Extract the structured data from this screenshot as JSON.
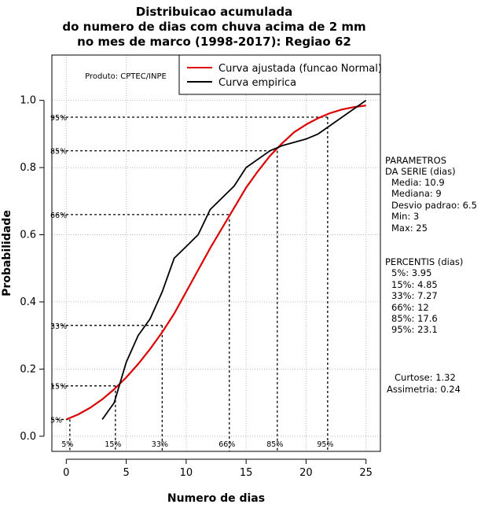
{
  "title_lines": [
    "Distribuicao acumulada",
    "do numero de dias com chuva acima de 2 mm",
    "no mes de marco (1998-2017): Regiao 62"
  ],
  "producer": "Produto: CPTEC/INPE",
  "params": {
    "header1": "PARAMETROS",
    "header2": "DA SERIE (dias)",
    "media": "Media: 10.9",
    "mediana": "Mediana: 9",
    "desvio": "Desvio padrao: 6.5",
    "min": "Min: 3",
    "max": "Max: 25"
  },
  "percentis": {
    "header": "PERCENTIS (dias)",
    "p5": "5%: 3.95",
    "p15": "15%: 4.85",
    "p33": "33%: 7.27",
    "p66": "66%: 12",
    "p85": "85%: 17.6",
    "p95": "95%: 23.1"
  },
  "stats": {
    "curtose": "Curtose: 1.32",
    "assimetria": "Assimetria: 0.24"
  },
  "chart_data": {
    "type": "line",
    "xlabel": "Numero de dias",
    "ylabel": "Probabilidade",
    "xlim": [
      -1.2,
      26.2
    ],
    "ylim": [
      -0.045,
      1.135
    ],
    "xticks": [
      0,
      5,
      10,
      15,
      20,
      25
    ],
    "yticks": [
      0.0,
      0.2,
      0.4,
      0.6,
      0.8,
      1.0
    ],
    "ytick_labels": [
      "0.0",
      "0.2",
      "0.4",
      "0.6",
      "0.8",
      "1.0"
    ],
    "legend": [
      "Curva ajustada (funcao Normal)",
      "Curva empirica"
    ],
    "colors": {
      "fitted": "#dd0000",
      "empirical": "#000000",
      "grid": "#bbbbbb"
    },
    "fitted": {
      "x": [
        0,
        1,
        2,
        3,
        4,
        5,
        6,
        7,
        8,
        9,
        10,
        11,
        12,
        13,
        14,
        15,
        16,
        17,
        18,
        19,
        20,
        21,
        22,
        23,
        24,
        25
      ],
      "y": [
        0.05,
        0.065,
        0.085,
        0.11,
        0.14,
        0.175,
        0.215,
        0.26,
        0.31,
        0.365,
        0.43,
        0.495,
        0.56,
        0.62,
        0.68,
        0.74,
        0.79,
        0.835,
        0.872,
        0.905,
        0.928,
        0.947,
        0.962,
        0.973,
        0.98,
        0.985
      ]
    },
    "empirical": {
      "x": [
        3,
        4,
        5,
        6,
        7,
        8,
        9,
        10,
        11,
        12,
        14,
        15,
        17,
        18,
        20,
        21,
        25
      ],
      "y": [
        0.05,
        0.1,
        0.22,
        0.3,
        0.35,
        0.43,
        0.53,
        0.565,
        0.6,
        0.675,
        0.745,
        0.8,
        0.85,
        0.865,
        0.885,
        0.9,
        1.0
      ]
    },
    "percentiles": [
      {
        "label": "5%",
        "p": 0.05,
        "x": 0.3
      },
      {
        "label": "15%",
        "p": 0.15,
        "x": 4.1
      },
      {
        "label": "33%",
        "p": 0.33,
        "x": 8.0
      },
      {
        "label": "66%",
        "p": 0.66,
        "x": 13.6
      },
      {
        "label": "85%",
        "p": 0.85,
        "x": 17.6
      },
      {
        "label": "95%",
        "p": 0.95,
        "x": 21.8
      }
    ]
  }
}
